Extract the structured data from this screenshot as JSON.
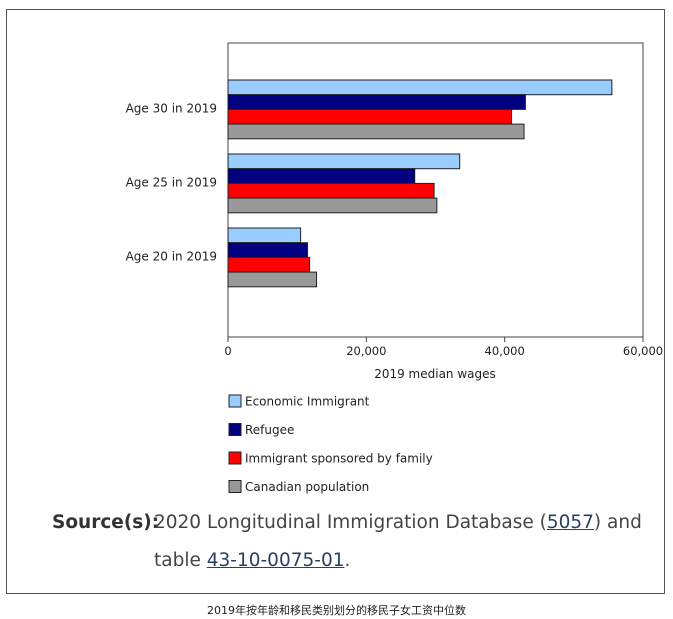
{
  "chart_data": {
    "type": "bar",
    "orientation": "horizontal",
    "categories": [
      "Age 30 in 2019",
      "Age 25 in 2019",
      "Age 20 in 2019"
    ],
    "series": [
      {
        "name": "Economic Immigrant",
        "color": "#99ccff",
        "values": [
          55500,
          33500,
          10500
        ]
      },
      {
        "name": "Refugee",
        "color": "#000080",
        "values": [
          43000,
          27000,
          11500
        ]
      },
      {
        "name": "Immigrant sponsored by family",
        "color": "#ff0000",
        "values": [
          41000,
          29800,
          11800
        ]
      },
      {
        "name": "Canadian population",
        "color": "#999999",
        "values": [
          42800,
          30200,
          12800
        ]
      }
    ],
    "xlabel": "2019 median wages",
    "xlim": [
      0,
      60000
    ],
    "xticks": [
      0,
      20000,
      40000,
      60000
    ],
    "xtick_labels": [
      "0",
      "20,000",
      "40,000",
      "60,000"
    ],
    "legend_position": "bottom-left"
  },
  "source": {
    "label": "Source(s):",
    "text_before": "2020 Longitudinal Immigration Database (",
    "link1": "5057",
    "text_middle": ") and",
    "line2_before": "table ",
    "link2": "43-10-0075-01",
    "line2_after": "."
  },
  "caption": "2019年按年龄和移民类别划分的移民子女工资中位数"
}
